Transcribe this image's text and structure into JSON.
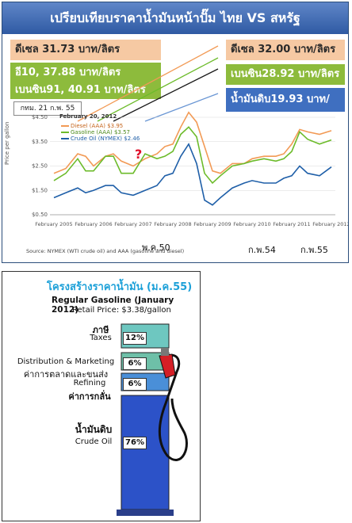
{
  "panel1": {
    "title": "เปรียบเทียบราคาน้ำมันหน้าปั๊ม ไทย VS สหรัฐ",
    "thai_diesel": "ดีเซล 31.73 บาท/ลิตร",
    "thai_e10": "อี10, 37.88 บาท/ลิตร",
    "thai_benzin91": "เบนซิน91, 40.91 บาท/ลิตร",
    "us_diesel": "ดีเซล 32.00 บาท/ลิตร",
    "us_gasoline": "เบนซิน28.92 บาท/ลิตร",
    "us_crude": "น้ำมันดิบ19.93 บาท/ลิตร",
    "date_box": "กทม. 21 ก.พ. 55",
    "feb54": "ก.พ.54",
    "feb55": "ก.พ.55",
    "mar50": "พ.ค.50",
    "question_mark": "?",
    "colors": {
      "diesel": "#f29a55",
      "gasoline": "#6cbb2a",
      "crude": "#1f5fa8",
      "title": "#3a64ad"
    }
  },
  "chart_data": {
    "type": "line",
    "title": "February 20, 2012",
    "ylabel": "Price per gallon",
    "source": "Source: NYMEX (WTI crude oil) and AAA (gasoline and diesel)",
    "ylim": [
      0.5,
      4.5
    ],
    "yticks": [
      "$0.50",
      "$1.50",
      "$2.50",
      "$3.50",
      "$4.50"
    ],
    "ytick_values": [
      0.5,
      1.5,
      2.5,
      3.5,
      4.5
    ],
    "xticks": [
      "February 2005",
      "February 2006",
      "February 2007",
      "February 2008",
      "February 2009",
      "February 2010",
      "February 2011",
      "February 2012"
    ],
    "x": [
      2005.1,
      2005.4,
      2005.7,
      2005.9,
      2006.1,
      2006.4,
      2006.6,
      2006.8,
      2007.1,
      2007.4,
      2007.7,
      2007.9,
      2008.1,
      2008.3,
      2008.5,
      2008.7,
      2008.9,
      2009.1,
      2009.3,
      2009.6,
      2009.9,
      2010.1,
      2010.4,
      2010.7,
      2010.9,
      2011.1,
      2011.3,
      2011.5,
      2011.8,
      2012.1
    ],
    "series": [
      {
        "name": "Diesel (AAA) $3.95",
        "values": [
          2.2,
          2.4,
          3.0,
          2.9,
          2.5,
          2.9,
          3.0,
          2.7,
          2.5,
          2.8,
          3.0,
          3.3,
          3.4,
          4.1,
          4.7,
          4.3,
          3.3,
          2.3,
          2.2,
          2.6,
          2.6,
          2.8,
          2.9,
          2.9,
          3.0,
          3.4,
          4.0,
          3.9,
          3.8,
          3.95
        ]
      },
      {
        "name": "Gasoline (AAA) $3.57",
        "values": [
          1.9,
          2.2,
          2.8,
          2.3,
          2.3,
          2.9,
          2.9,
          2.2,
          2.2,
          3.0,
          2.8,
          2.9,
          3.1,
          3.8,
          4.1,
          3.7,
          2.2,
          1.8,
          2.1,
          2.5,
          2.6,
          2.7,
          2.8,
          2.7,
          2.8,
          3.1,
          3.9,
          3.6,
          3.4,
          3.57
        ]
      },
      {
        "name": "Crude Oil (NYMEX) $2.46",
        "values": [
          1.2,
          1.4,
          1.6,
          1.4,
          1.5,
          1.7,
          1.7,
          1.4,
          1.3,
          1.5,
          1.7,
          2.1,
          2.2,
          2.9,
          3.4,
          2.6,
          1.1,
          0.9,
          1.2,
          1.6,
          1.8,
          1.9,
          1.8,
          1.8,
          2.0,
          2.1,
          2.5,
          2.2,
          2.1,
          2.46
        ]
      }
    ]
  },
  "panel2": {
    "title": "โครงสร้างราคาน้ำมัน (ม.ค.55)",
    "subtitle": "Regular Gasoline (January 2012)",
    "retail": "Retail Price: $3.38/gallon",
    "segments": [
      {
        "thai": "ภาษี",
        "en": "Taxes",
        "pct": "12%",
        "value": 12,
        "color": "#6ec7c0"
      },
      {
        "thai": "ค่าการตลาดและขนส่ง",
        "en": "Distribution & Marketing",
        "pct": "6%",
        "value": 6,
        "color": "#6ec0a8"
      },
      {
        "thai": "ค่าการกลั่น",
        "en": "Refining",
        "pct": "6%",
        "value": 6,
        "color": "#4a8fd8"
      },
      {
        "thai": "น้ำมันดิบ",
        "en": "Crude Oil",
        "pct": "76%",
        "value": 76,
        "color": "#2c52c8"
      }
    ]
  }
}
